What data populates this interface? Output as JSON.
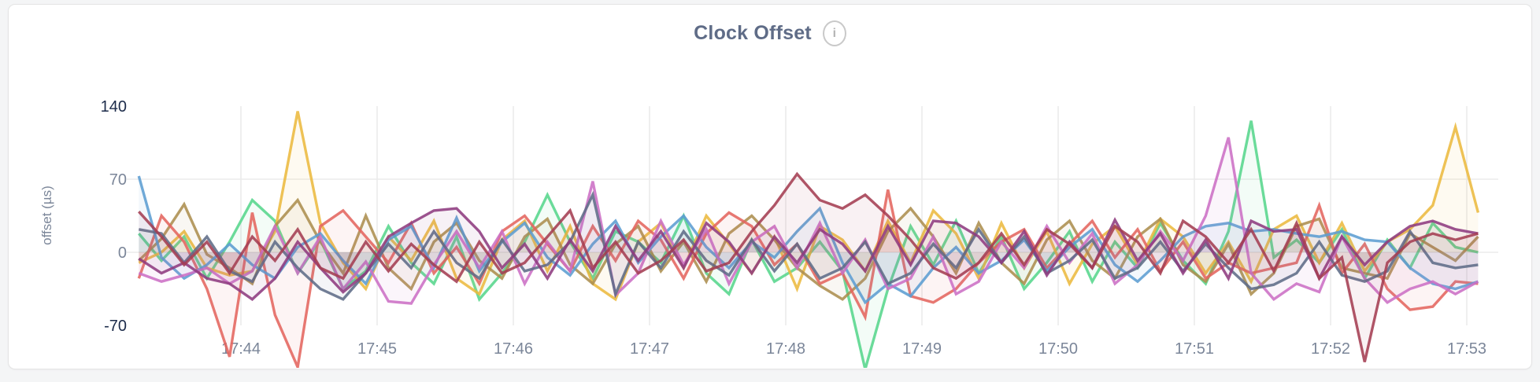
{
  "page": {
    "background": "#f4f5f6"
  },
  "card": {
    "title": "Clock Offset",
    "info_glyph": "i",
    "background": "#ffffff",
    "border_color": "#e4e4e4"
  },
  "colors": {
    "title": "#5f6c87",
    "axis_strong": "#1c2b4a",
    "axis_muted": "#7b8699",
    "grid": "#ebebeb",
    "info_icon": "#c9c9c9"
  },
  "chart_data": {
    "type": "line",
    "title": "Clock Offset",
    "xlabel": "",
    "ylabel": "offset (µs)",
    "ylim": [
      -70,
      140
    ],
    "y_ticks": [
      140,
      70,
      0,
      -70
    ],
    "x_ticks": [
      "17:44",
      "17:45",
      "17:46",
      "17:47",
      "17:48",
      "17:49",
      "17:50",
      "17:51",
      "17:52",
      "17:53"
    ],
    "x_start": "17:43:15",
    "x_step_seconds": 10,
    "grid": true,
    "legend": "none",
    "fill_to_zero": true,
    "fill_opacity": 0.07,
    "series": [
      {
        "color": "#57D68C",
        "values": [
          18,
          -8,
          15,
          -25,
          10,
          50,
          30,
          -20,
          12,
          -35,
          -18,
          25,
          -10,
          -30,
          15,
          -45,
          -20,
          10,
          55,
          10,
          -25,
          20,
          10,
          -10,
          35,
          -20,
          -40,
          12,
          -28,
          -15,
          10,
          -18,
          -112,
          -35,
          25,
          -12,
          30,
          -20,
          15,
          -35,
          -10,
          20,
          -28,
          10,
          -15,
          28,
          -8,
          -30,
          20,
          126,
          -5,
          12,
          -10,
          22,
          -25,
          12,
          -15,
          28,
          5,
          0
        ]
      },
      {
        "color": "#ECB93F",
        "values": [
          -10,
          0,
          20,
          -15,
          -22,
          -18,
          20,
          135,
          28,
          -10,
          -35,
          15,
          -8,
          30,
          -25,
          -40,
          12,
          30,
          -18,
          25,
          -30,
          -45,
          10,
          28,
          -15,
          35,
          8,
          -20,
          15,
          -35,
          25,
          12,
          -18,
          30,
          -10,
          40,
          18,
          -25,
          28,
          -15,
          20,
          -30,
          8,
          25,
          -12,
          32,
          15,
          -20,
          10,
          -28,
          22,
          35,
          -10,
          28,
          -18,
          10,
          22,
          45,
          120,
          38
        ]
      },
      {
        "color": "#AC8E4F",
        "values": [
          -8,
          13,
          46,
          -2,
          -15,
          -30,
          25,
          50,
          10,
          -20,
          35,
          -15,
          -35,
          10,
          28,
          -8,
          -25,
          15,
          32,
          -12,
          -30,
          8,
          25,
          -18,
          10,
          -28,
          18,
          35,
          12,
          -15,
          -32,
          -45,
          -25,
          20,
          42,
          15,
          -20,
          28,
          -10,
          -30,
          12,
          30,
          -8,
          -25,
          15,
          32,
          -12,
          -28,
          8,
          -40,
          -20,
          25,
          32,
          -15,
          -20,
          -25,
          18,
          5,
          -8,
          15
        ]
      },
      {
        "color": "#E4655F",
        "values": [
          -25,
          35,
          10,
          -35,
          -100,
          38,
          -60,
          -110,
          25,
          40,
          15,
          -10,
          28,
          -20,
          5,
          -30,
          20,
          35,
          8,
          -18,
          25,
          -8,
          30,
          12,
          -25,
          18,
          38,
          25,
          -12,
          8,
          -30,
          -20,
          -62,
          60,
          -42,
          -48,
          -35,
          -10,
          10,
          22,
          -15,
          8,
          30,
          -5,
          22,
          -18,
          10,
          -25,
          -10,
          -20,
          -15,
          -10,
          45,
          -20,
          8,
          -35,
          -55,
          -52,
          -28,
          -30
        ]
      },
      {
        "color": "#5C9DD1",
        "values": [
          73,
          -5,
          -25,
          -12,
          8,
          -12,
          -25,
          5,
          18,
          -8,
          -30,
          12,
          25,
          -15,
          33,
          -18,
          10,
          28,
          -5,
          -22,
          8,
          30,
          -10,
          15,
          35,
          5,
          -15,
          10,
          -5,
          20,
          42,
          -10,
          -48,
          -30,
          -42,
          -15,
          5,
          -20,
          -8,
          12,
          -18,
          5,
          22,
          -12,
          -28,
          -8,
          15,
          25,
          28,
          20,
          22,
          18,
          15,
          20,
          12,
          10,
          -15,
          -30,
          -35,
          -28
        ]
      },
      {
        "color": "#CC70C5",
        "values": [
          -20,
          -28,
          -22,
          -15,
          -30,
          -18,
          25,
          -20,
          15,
          -35,
          -9,
          -47,
          -49,
          -12,
          20,
          -15,
          20,
          -30,
          10,
          -18,
          68,
          -41,
          -20,
          30,
          -12,
          22,
          -30,
          10,
          25,
          -15,
          28,
          -20,
          12,
          -35,
          -25,
          15,
          -40,
          -28,
          10,
          -15,
          25,
          -10,
          18,
          -30,
          -12,
          20,
          -8,
          35,
          110,
          -20,
          -45,
          -30,
          -38,
          15,
          -25,
          -48,
          -35,
          -28,
          -40,
          -28
        ]
      },
      {
        "color": "#5F6C87",
        "values": [
          22,
          18,
          -10,
          15,
          -18,
          -28,
          10,
          -15,
          -35,
          -45,
          -20,
          8,
          -15,
          20,
          -10,
          -25,
          12,
          -18,
          -12,
          10,
          55,
          -40,
          10,
          -15,
          20,
          -8,
          -22,
          12,
          -18,
          8,
          -25,
          -15,
          10,
          -30,
          -20,
          8,
          -15,
          22,
          -10,
          15,
          -20,
          -8,
          12,
          -25,
          -15,
          10,
          -18,
          8,
          -15,
          -35,
          -31,
          -20,
          10,
          -22,
          -28,
          -18,
          20,
          -10,
          -15,
          -12
        ]
      },
      {
        "color": "#8E3B7F",
        "values": [
          -6,
          -20,
          -10,
          -25,
          -30,
          -45,
          -25,
          10,
          -15,
          -38,
          -20,
          15,
          28,
          40,
          42,
          20,
          -15,
          8,
          -25,
          12,
          -18,
          25,
          -8,
          20,
          -15,
          28,
          10,
          -20,
          15,
          -10,
          22,
          8,
          -18,
          25,
          -12,
          30,
          28,
          15,
          -10,
          20,
          -22,
          10,
          -15,
          31,
          -8,
          18,
          -20,
          12,
          -25,
          30,
          20,
          22,
          -25,
          15,
          -12,
          10,
          25,
          30,
          22,
          18
        ]
      },
      {
        "color": "#A43D52",
        "values": [
          39,
          15,
          -12,
          10,
          -20,
          15,
          -8,
          22,
          -15,
          -25,
          10,
          -18,
          8,
          -12,
          -28,
          10,
          -20,
          -10,
          15,
          40,
          -15,
          10,
          -20,
          -8,
          12,
          -18,
          -10,
          20,
          45,
          75,
          50,
          42,
          55,
          35,
          12,
          -15,
          -25,
          -10,
          18,
          -12,
          22,
          8,
          -15,
          25,
          10,
          -20,
          30,
          15,
          -10,
          22,
          -18,
          28,
          -25,
          -5,
          -105,
          -10,
          10,
          18,
          12,
          18
        ]
      }
    ]
  }
}
